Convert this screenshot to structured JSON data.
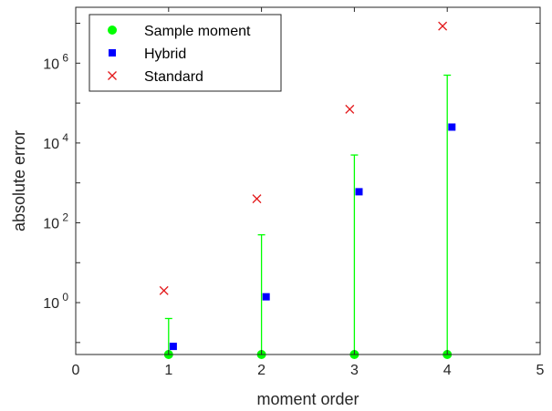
{
  "chart_data": {
    "type": "scatter",
    "xlabel": "moment order",
    "ylabel": "absolute error",
    "xlim": [
      0,
      5
    ],
    "ylim_log10": [
      -1.3,
      7.4
    ],
    "y_scale": "log",
    "grid": false,
    "legend_position": "top-left",
    "x_ticks": [
      0,
      1,
      2,
      3,
      4,
      5
    ],
    "y_ticks": [
      {
        "base": "10",
        "exp": "0",
        "value": 1
      },
      {
        "base": "10",
        "exp": "2",
        "value": 100
      },
      {
        "base": "10",
        "exp": "4",
        "value": 10000
      },
      {
        "base": "10",
        "exp": "6",
        "value": 1000000
      }
    ],
    "series": [
      {
        "name": "Sample moment",
        "color": "#00ff00",
        "marker": "circle",
        "points": [
          {
            "x": 1,
            "lower": 0.05,
            "upper": 0.4
          },
          {
            "x": 2,
            "lower": 0.05,
            "upper": 50
          },
          {
            "x": 3,
            "lower": 0.05,
            "upper": 5000
          },
          {
            "x": 4,
            "lower": 0.05,
            "upper": 500000
          }
        ]
      },
      {
        "name": "Hybrid",
        "color": "#0000ff",
        "marker": "square",
        "points": [
          {
            "x": 1.05,
            "y": 0.08
          },
          {
            "x": 2.05,
            "y": 1.4
          },
          {
            "x": 3.05,
            "y": 600
          },
          {
            "x": 4.05,
            "y": 25000
          }
        ]
      },
      {
        "name": "Standard",
        "color": "#e31a1c",
        "marker": "x",
        "points": [
          {
            "x": 0.95,
            "y": 2
          },
          {
            "x": 1.95,
            "y": 400
          },
          {
            "x": 2.95,
            "y": 70000
          },
          {
            "x": 3.95,
            "y": 8500000
          }
        ]
      }
    ]
  }
}
